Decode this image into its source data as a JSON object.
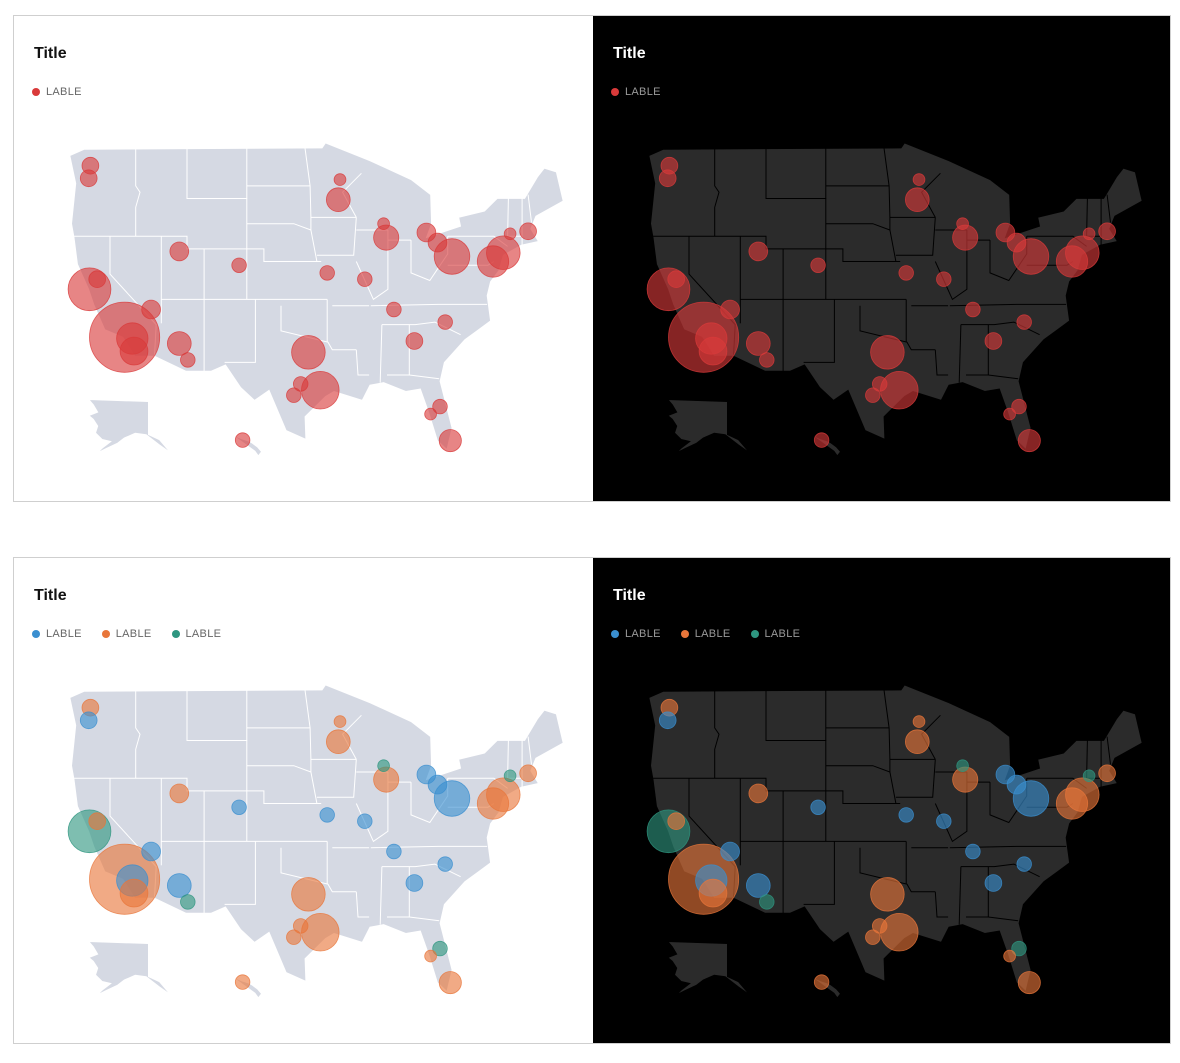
{
  "colors": {
    "red": "#d93a3a",
    "blue": "#3a8fd0",
    "orange": "#e8763a",
    "teal": "#2e9680",
    "land_light": "#d5d9e3",
    "land_dark": "#2b2b2b",
    "border_light": "#ffffff",
    "border_dark": "#000000"
  },
  "panels": [
    {
      "id": "top-left",
      "theme": "light",
      "title": "Title",
      "legend": [
        {
          "label": "LABLE",
          "color": "red"
        }
      ]
    },
    {
      "id": "top-right",
      "theme": "dark",
      "title": "Title",
      "legend": [
        {
          "label": "LABLE",
          "color": "red"
        }
      ]
    },
    {
      "id": "bottom-left",
      "theme": "light",
      "title": "Title",
      "legend": [
        {
          "label": "LABLE",
          "color": "blue"
        },
        {
          "label": "LABLE",
          "color": "orange"
        },
        {
          "label": "LABLE",
          "color": "teal"
        }
      ]
    },
    {
      "id": "bottom-right",
      "theme": "dark",
      "title": "Title",
      "legend": [
        {
          "label": "LABLE",
          "color": "blue"
        },
        {
          "label": "LABLE",
          "color": "orange"
        },
        {
          "label": "LABLE",
          "color": "teal"
        }
      ]
    }
  ],
  "map_data": {
    "type": "bubble-map",
    "region": "United States",
    "bubbles": [
      {
        "lon": -122.3,
        "lat": 47.6,
        "value": 4,
        "group": "orange"
      },
      {
        "lon": -122.5,
        "lat": 46.6,
        "value": 4,
        "group": "blue"
      },
      {
        "lon": -122.4,
        "lat": 37.8,
        "value": 26,
        "group": "teal"
      },
      {
        "lon": -118.3,
        "lat": 34.0,
        "value": 70,
        "group": "orange"
      },
      {
        "lon": -117.2,
        "lat": 32.9,
        "value": 11,
        "group": "orange"
      },
      {
        "lon": -117.4,
        "lat": 33.9,
        "value": 14,
        "group": "blue"
      },
      {
        "lon": -115.2,
        "lat": 36.2,
        "value": 5,
        "group": "blue"
      },
      {
        "lon": -121.5,
        "lat": 38.6,
        "value": 4,
        "group": "orange"
      },
      {
        "lon": -111.9,
        "lat": 33.5,
        "value": 8,
        "group": "blue"
      },
      {
        "lon": -110.9,
        "lat": 32.2,
        "value": 3,
        "group": "teal"
      },
      {
        "lon": -111.9,
        "lat": 40.8,
        "value": 5,
        "group": "orange"
      },
      {
        "lon": -104.9,
        "lat": 39.7,
        "value": 3,
        "group": "blue"
      },
      {
        "lon": -96.8,
        "lat": 32.8,
        "value": 16,
        "group": "orange"
      },
      {
        "lon": -95.4,
        "lat": 29.8,
        "value": 20,
        "group": "orange"
      },
      {
        "lon": -98.5,
        "lat": 29.4,
        "value": 3,
        "group": "orange"
      },
      {
        "lon": -97.7,
        "lat": 30.3,
        "value": 3,
        "group": "orange"
      },
      {
        "lon": -93.3,
        "lat": 44.9,
        "value": 8,
        "group": "orange"
      },
      {
        "lon": -93.1,
        "lat": 46.5,
        "value": 2,
        "group": "orange"
      },
      {
        "lon": -87.7,
        "lat": 41.9,
        "value": 9,
        "group": "orange"
      },
      {
        "lon": -88.0,
        "lat": 43.0,
        "value": 2,
        "group": "teal"
      },
      {
        "lon": -83.0,
        "lat": 42.3,
        "value": 5,
        "group": "blue"
      },
      {
        "lon": -81.7,
        "lat": 41.5,
        "value": 5,
        "group": "blue"
      },
      {
        "lon": -80.0,
        "lat": 40.4,
        "value": 18,
        "group": "blue"
      },
      {
        "lon": -75.2,
        "lat": 40.0,
        "value": 14,
        "group": "orange"
      },
      {
        "lon": -74.0,
        "lat": 40.7,
        "value": 16,
        "group": "orange"
      },
      {
        "lon": -71.1,
        "lat": 42.4,
        "value": 4,
        "group": "orange"
      },
      {
        "lon": -73.2,
        "lat": 42.2,
        "value": 2,
        "group": "teal"
      },
      {
        "lon": -84.4,
        "lat": 33.7,
        "value": 4,
        "group": "blue"
      },
      {
        "lon": -81.4,
        "lat": 28.5,
        "value": 3,
        "group": "teal"
      },
      {
        "lon": -80.2,
        "lat": 25.8,
        "value": 7,
        "group": "orange"
      },
      {
        "lon": -82.5,
        "lat": 27.9,
        "value": 2,
        "group": "orange"
      },
      {
        "lon": -90.2,
        "lat": 38.6,
        "value": 3,
        "group": "blue"
      },
      {
        "lon": -94.6,
        "lat": 39.1,
        "value": 3,
        "group": "blue"
      },
      {
        "lon": -86.8,
        "lat": 36.2,
        "value": 3,
        "group": "blue"
      },
      {
        "lon": -80.8,
        "lat": 35.2,
        "value": 3,
        "group": "blue"
      },
      {
        "lon": -157.9,
        "lat": 21.3,
        "value": 3,
        "group": "orange"
      }
    ]
  }
}
